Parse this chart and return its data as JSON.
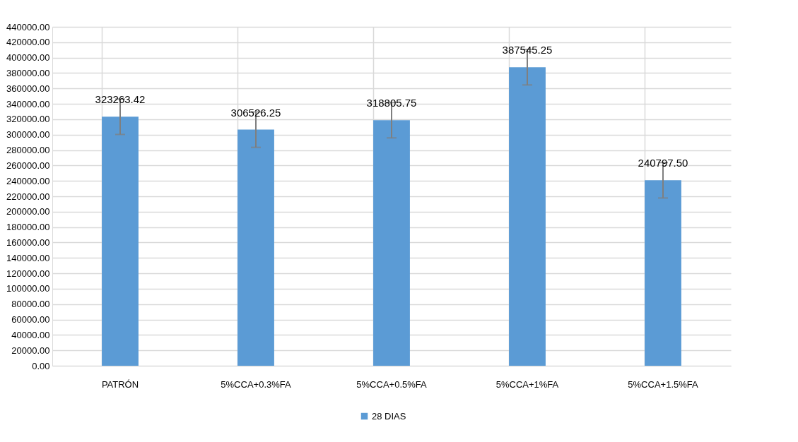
{
  "chart_data": {
    "type": "bar",
    "categories": [
      "PATRÓN",
      "5%CCA+0.3%FA",
      "5%CCA+0.5%FA",
      "5%CCA+1%FA",
      "5%CCA+1.5%FA"
    ],
    "series": [
      {
        "name": "28 DIAS",
        "color": "#5b9bd5",
        "values": [
          323263.42,
          306526.25,
          318805.75,
          387545.25,
          240797.5
        ],
        "errors": [
          23000,
          23000,
          23000,
          23000,
          23000
        ],
        "value_labels": [
          "323263.42",
          "306526.25",
          "318805.75",
          "387545.25",
          "240797.50"
        ]
      }
    ],
    "ylim": [
      0,
      440000
    ],
    "yticks": [
      {
        "value": 0,
        "label": "0.00"
      },
      {
        "value": 20000,
        "label": "20000.00"
      },
      {
        "value": 40000,
        "label": "40000.00"
      },
      {
        "value": 60000,
        "label": "60000.00"
      },
      {
        "value": 80000,
        "label": "80000.00"
      },
      {
        "value": 100000,
        "label": "100000.00"
      },
      {
        "value": 120000,
        "label": "120000.00"
      },
      {
        "value": 140000,
        "label": "140000.00"
      },
      {
        "value": 160000,
        "label": "160000.00"
      },
      {
        "value": 180000,
        "label": "180000.00"
      },
      {
        "value": 200000,
        "label": "200000.00"
      },
      {
        "value": 220000,
        "label": "220000.00"
      },
      {
        "value": 240000,
        "label": "240000.00"
      },
      {
        "value": 260000,
        "label": "260000.00"
      },
      {
        "value": 280000,
        "label": "280000.00"
      },
      {
        "value": 300000,
        "label": "300000.00"
      },
      {
        "value": 320000,
        "label": "320000.00"
      },
      {
        "value": 340000,
        "label": "340000.00"
      },
      {
        "value": 360000,
        "label": "360000.00"
      },
      {
        "value": 380000,
        "label": "380000.00"
      },
      {
        "value": 400000,
        "label": "400000.00"
      },
      {
        "value": 420000,
        "label": "420000.00"
      },
      {
        "value": 440000,
        "label": "440000.00"
      }
    ],
    "grid": true,
    "legend": "bottom"
  }
}
